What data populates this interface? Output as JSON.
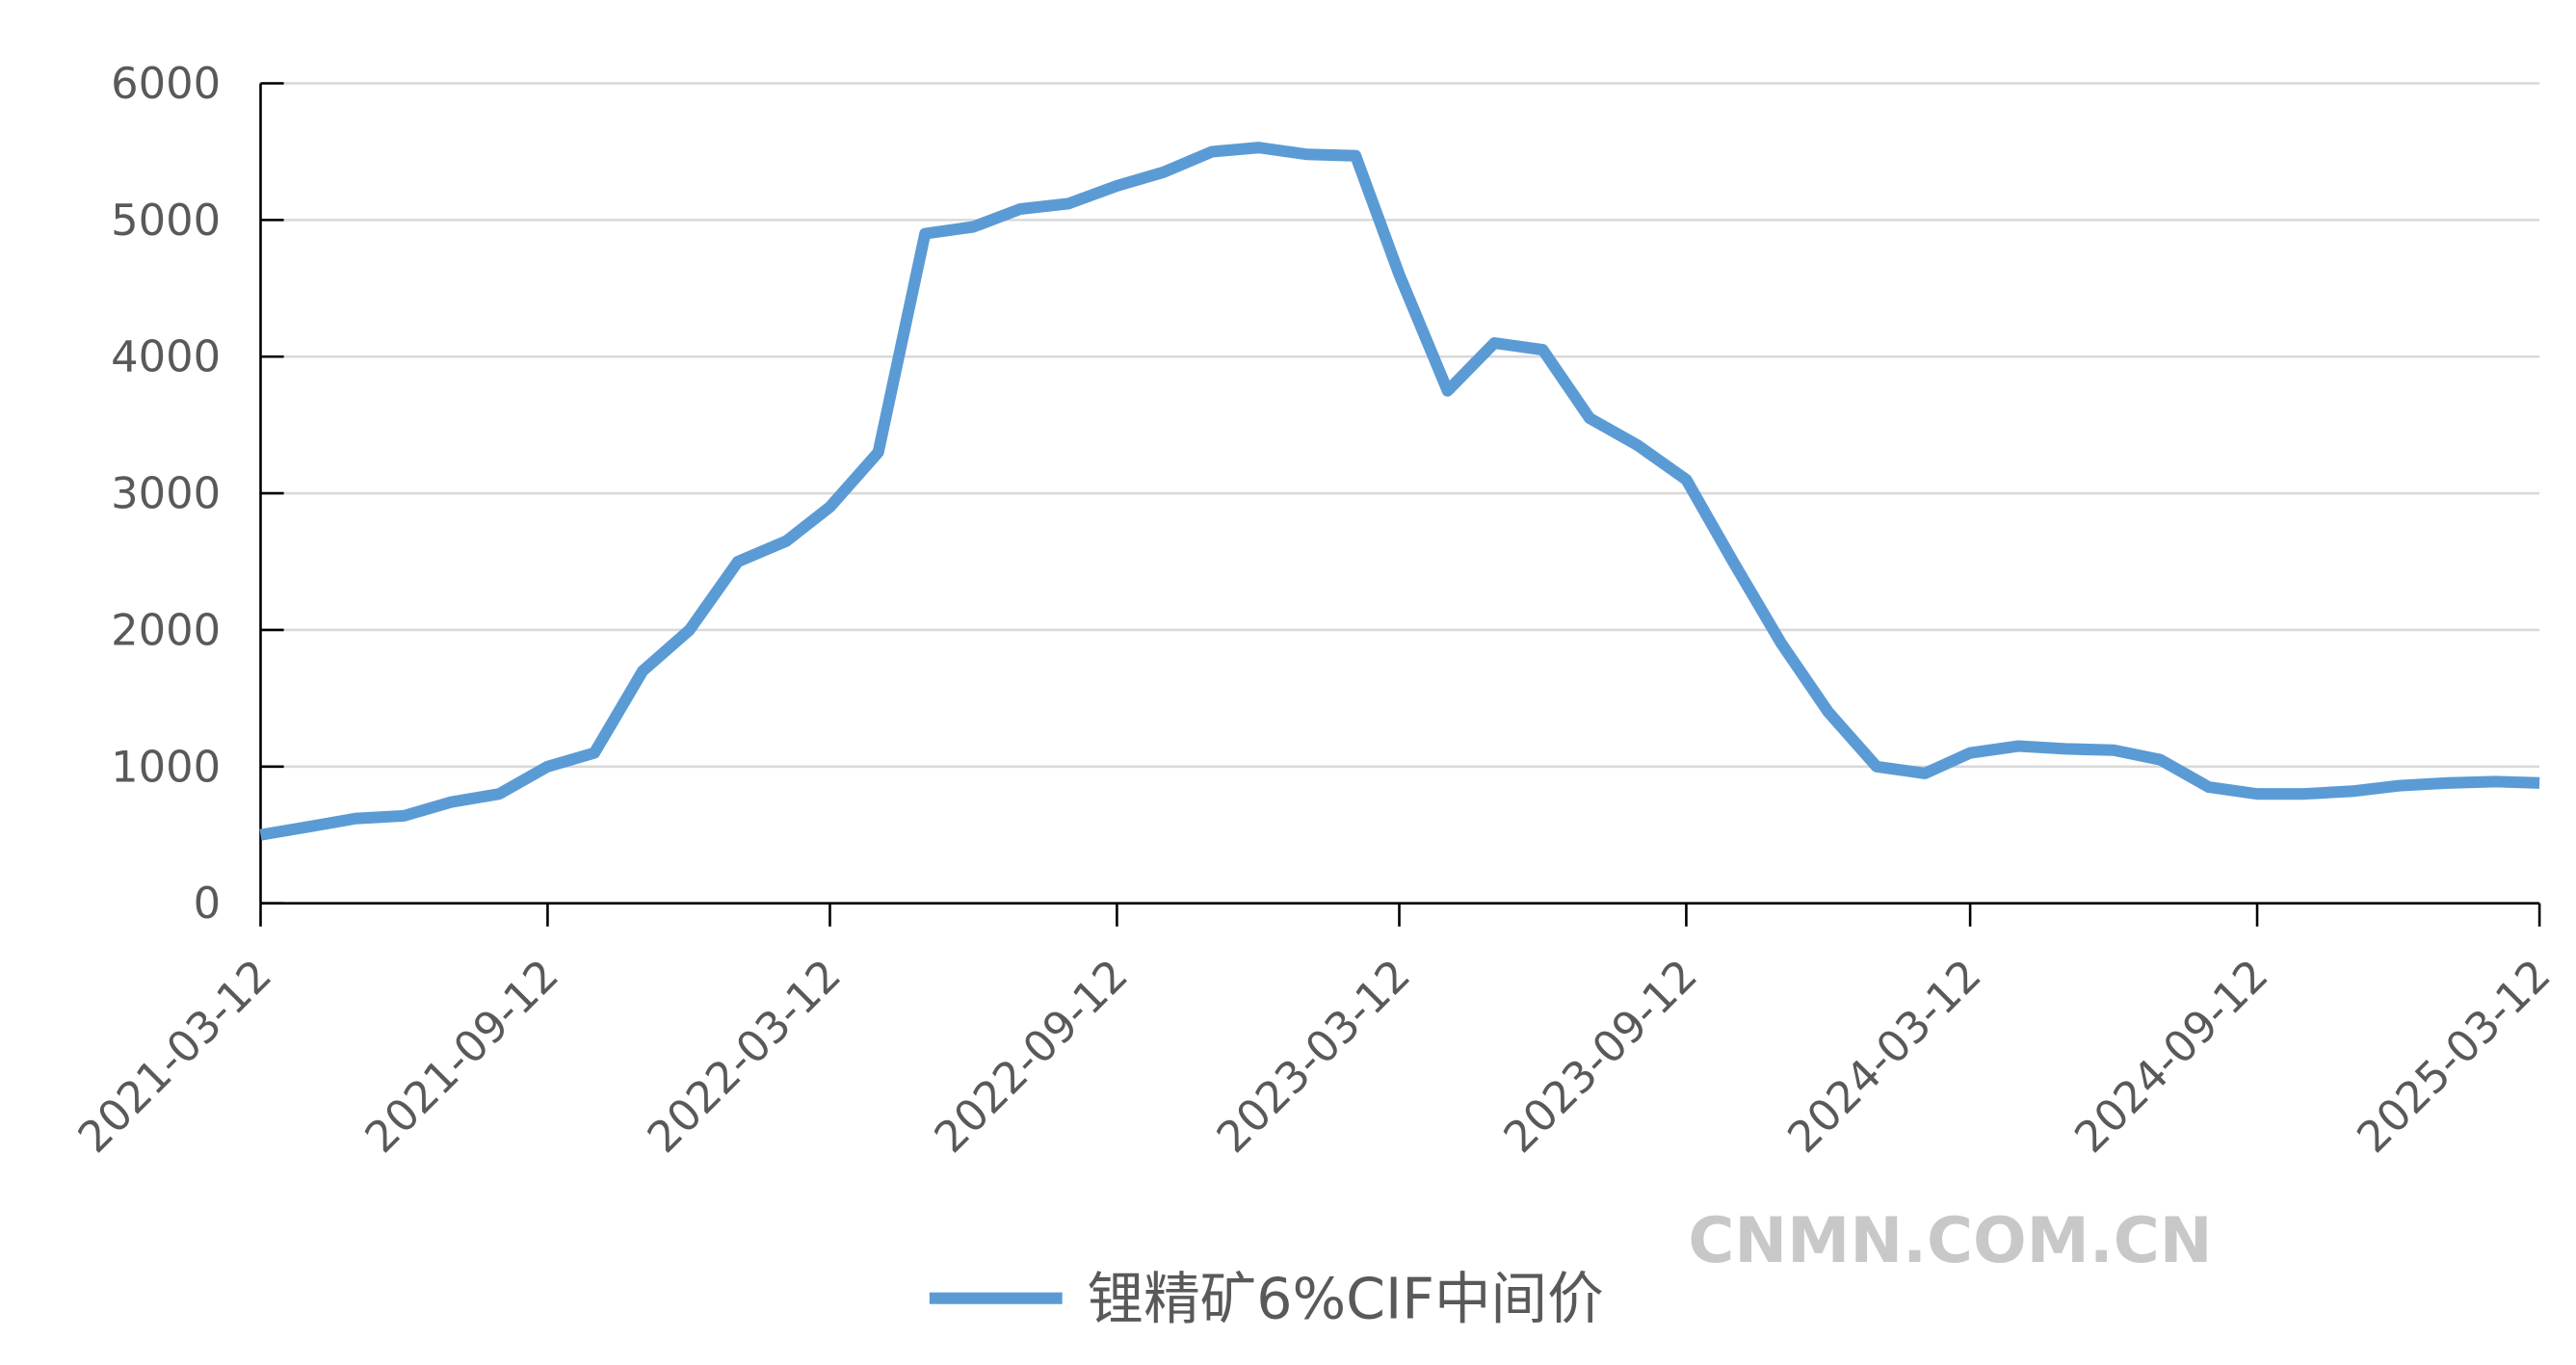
{
  "chart_data": {
    "type": "line",
    "x": [
      "2021-03-12",
      "2021-04-12",
      "2021-05-12",
      "2021-06-12",
      "2021-07-12",
      "2021-08-12",
      "2021-09-12",
      "2021-10-12",
      "2021-11-12",
      "2021-12-12",
      "2022-01-12",
      "2022-02-12",
      "2022-03-12",
      "2022-04-12",
      "2022-05-12",
      "2022-06-12",
      "2022-07-12",
      "2022-08-12",
      "2022-09-12",
      "2022-10-12",
      "2022-11-12",
      "2022-12-12",
      "2023-01-12",
      "2023-02-12",
      "2023-03-12",
      "2023-04-12",
      "2023-05-12",
      "2023-06-12",
      "2023-07-12",
      "2023-08-12",
      "2023-09-12",
      "2023-10-12",
      "2023-11-12",
      "2023-12-12",
      "2024-01-12",
      "2024-02-12",
      "2024-03-12",
      "2024-04-12",
      "2024-05-12",
      "2024-06-12",
      "2024-07-12",
      "2024-08-12",
      "2024-09-12",
      "2024-10-12",
      "2024-11-12",
      "2024-12-12",
      "2025-01-12",
      "2025-02-12",
      "2025-03-12"
    ],
    "series": [
      {
        "name": "锂精矿6%CIF中间价",
        "color": "#5b9bd5",
        "values": [
          500,
          560,
          620,
          640,
          740,
          800,
          1000,
          1100,
          1700,
          2000,
          2500,
          2650,
          2900,
          3300,
          4900,
          4950,
          5080,
          5120,
          5250,
          5350,
          5500,
          5530,
          5480,
          5470,
          4600,
          3750,
          4100,
          4050,
          3550,
          3350,
          3100,
          2500,
          1900,
          1400,
          1000,
          950,
          1100,
          1150,
          1130,
          1120,
          1050,
          850,
          800,
          800,
          820,
          860,
          880,
          890,
          880
        ]
      }
    ],
    "ylim": [
      0,
      6000
    ],
    "yticks": [
      0,
      1000,
      2000,
      3000,
      4000,
      5000,
      6000
    ],
    "xlim": [
      "2021-03-12",
      "2025-03-12"
    ],
    "xticks": [
      "2021-03-12",
      "2021-09-12",
      "2022-03-12",
      "2022-09-12",
      "2023-03-12",
      "2023-09-12",
      "2024-03-12",
      "2024-09-12",
      "2025-03-12"
    ],
    "grid": true,
    "legend": "bottom",
    "watermark": "CNMN.COM.CN"
  }
}
